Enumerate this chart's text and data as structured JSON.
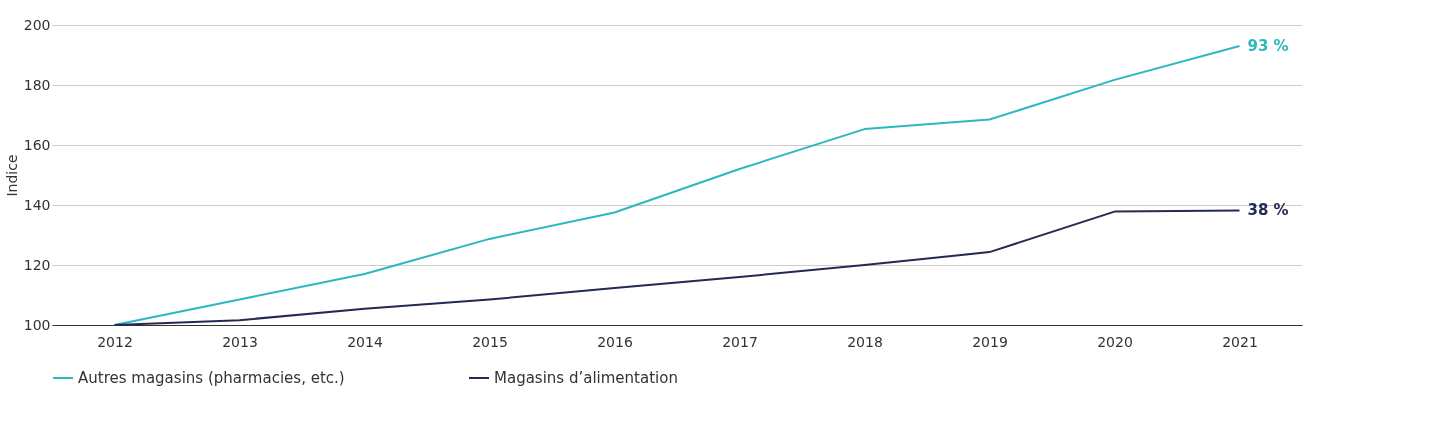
{
  "chart_data": {
    "type": "line",
    "ylabel": "Indice",
    "categories": [
      "2012",
      "2013",
      "2014",
      "2015",
      "2016",
      "2017",
      "2018",
      "2019",
      "2020",
      "2021"
    ],
    "series": [
      {
        "name": "Autres magasins (pharmacies, etc.)",
        "color": "#2cb8bd",
        "values": [
          100,
          108.5,
          117,
          128.7,
          137.5,
          152,
          165.3,
          168.5,
          181.7,
          193
        ]
      },
      {
        "name": "Magasins d’alimentation",
        "color": "#232a55",
        "values": [
          100,
          101.6,
          105.4,
          108.5,
          112.3,
          116,
          120,
          124.3,
          137.8,
          138.2
        ]
      }
    ],
    "ylim": [
      100,
      200
    ],
    "yticks": [
      100,
      120,
      140,
      160,
      180,
      200
    ],
    "grid": "y",
    "legend": "bottom",
    "marker": "none",
    "line_style": "solid",
    "annotations": [
      {
        "text": "93 %",
        "x": "2021",
        "y": 193
      },
      {
        "text": "38 %",
        "x": "2021",
        "y": 138.2
      }
    ]
  }
}
